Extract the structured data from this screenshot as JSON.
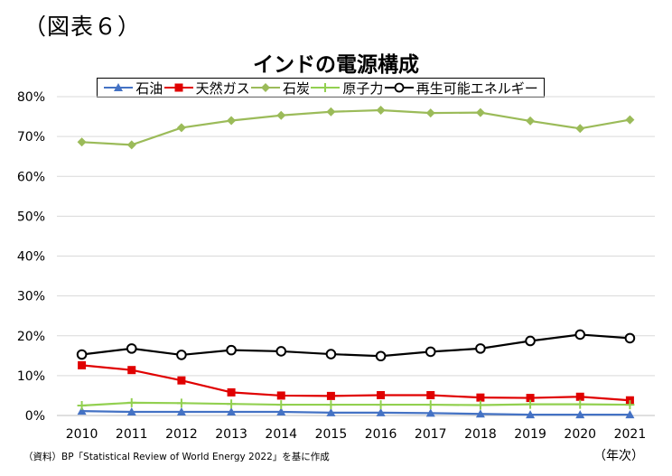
{
  "figure_label": "（図表６）",
  "source_note": "（資料）BP「Statistical Review of World Energy 2022」を基に作成",
  "x_unit_label": "（年次）",
  "chart_data": {
    "type": "line",
    "title": "インドの電源構成",
    "xlabel": "",
    "ylabel": "",
    "ylim": [
      0,
      80
    ],
    "y_ticks": [
      0,
      10,
      20,
      30,
      40,
      50,
      60,
      70,
      80
    ],
    "y_tick_labels": [
      "0%",
      "10%",
      "20%",
      "30%",
      "40%",
      "50%",
      "60%",
      "70%",
      "80%"
    ],
    "grid": true,
    "legend_position": "top",
    "categories": [
      "2010",
      "2011",
      "2012",
      "2013",
      "2014",
      "2015",
      "2016",
      "2017",
      "2018",
      "2019",
      "2020",
      "2021"
    ],
    "series": [
      {
        "name": "石油",
        "color": "#4472c4",
        "marker": "triangle",
        "values": [
          1.1,
          0.9,
          0.9,
          0.9,
          0.9,
          0.7,
          0.7,
          0.6,
          0.4,
          0.2,
          0.2,
          0.2
        ]
      },
      {
        "name": "天然ガス",
        "color": "#e00000",
        "marker": "square",
        "values": [
          12.6,
          11.4,
          8.8,
          5.8,
          5.0,
          4.9,
          5.1,
          5.1,
          4.5,
          4.4,
          4.7,
          3.8
        ]
      },
      {
        "name": "石炭",
        "color": "#9bbb59",
        "marker": "diamond",
        "values": [
          68.6,
          67.9,
          72.2,
          74.0,
          75.3,
          76.2,
          76.6,
          75.9,
          76.0,
          73.9,
          72.0,
          74.2
        ]
      },
      {
        "name": "原子力",
        "color": "#92d050",
        "marker": "plus",
        "values": [
          2.5,
          3.2,
          3.1,
          2.9,
          2.7,
          2.7,
          2.7,
          2.7,
          2.6,
          2.8,
          2.8,
          2.7
        ]
      },
      {
        "name": "再生可能エネルギー",
        "color": "#000000",
        "marker": "circle",
        "values": [
          15.3,
          16.8,
          15.2,
          16.4,
          16.1,
          15.4,
          14.9,
          16.0,
          16.8,
          18.7,
          20.3,
          19.4
        ]
      }
    ]
  }
}
